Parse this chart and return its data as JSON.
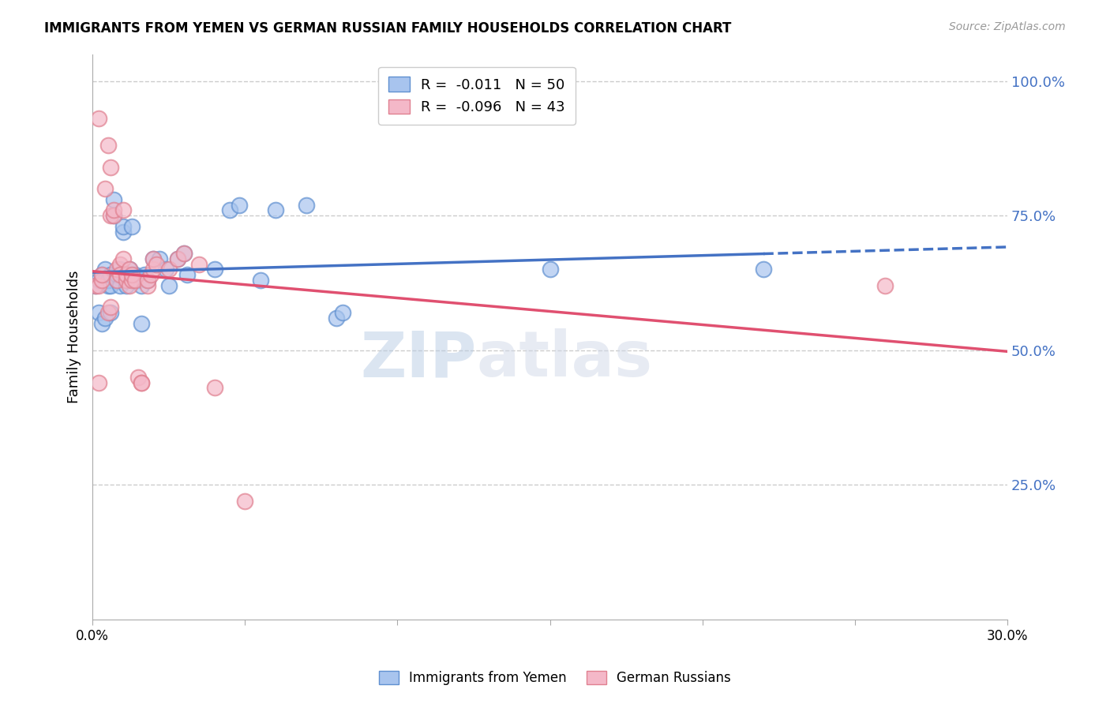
{
  "title": "IMMIGRANTS FROM YEMEN VS GERMAN RUSSIAN FAMILY HOUSEHOLDS CORRELATION CHART",
  "source": "Source: ZipAtlas.com",
  "ylabel": "Family Households",
  "right_yticks": [
    "100.0%",
    "75.0%",
    "50.0%",
    "25.0%"
  ],
  "right_ytick_vals": [
    1.0,
    0.75,
    0.5,
    0.25
  ],
  "xlim": [
    0.0,
    0.3
  ],
  "ylim": [
    0.0,
    1.05
  ],
  "legend_entry1": "R =  -0.011   N = 50",
  "legend_entry2": "R =  -0.096   N = 43",
  "line_color1": "#4472c4",
  "line_color2": "#e05070",
  "watermark_zip": "ZIP",
  "watermark_atlas": "atlas",
  "scatter_blue": [
    [
      0.001,
      0.62
    ],
    [
      0.002,
      0.63
    ],
    [
      0.003,
      0.63
    ],
    [
      0.003,
      0.64
    ],
    [
      0.004,
      0.65
    ],
    [
      0.004,
      0.63
    ],
    [
      0.005,
      0.62
    ],
    [
      0.005,
      0.63
    ],
    [
      0.006,
      0.62
    ],
    [
      0.006,
      0.64
    ],
    [
      0.007,
      0.75
    ],
    [
      0.007,
      0.78
    ],
    [
      0.008,
      0.63
    ],
    [
      0.008,
      0.64
    ],
    [
      0.009,
      0.65
    ],
    [
      0.009,
      0.62
    ],
    [
      0.01,
      0.72
    ],
    [
      0.01,
      0.73
    ],
    [
      0.011,
      0.62
    ],
    [
      0.011,
      0.63
    ],
    [
      0.012,
      0.64
    ],
    [
      0.012,
      0.65
    ],
    [
      0.013,
      0.73
    ],
    [
      0.014,
      0.64
    ],
    [
      0.015,
      0.63
    ],
    [
      0.016,
      0.62
    ],
    [
      0.017,
      0.64
    ],
    [
      0.018,
      0.63
    ],
    [
      0.02,
      0.67
    ],
    [
      0.022,
      0.67
    ],
    [
      0.024,
      0.65
    ],
    [
      0.025,
      0.62
    ],
    [
      0.028,
      0.67
    ],
    [
      0.03,
      0.68
    ],
    [
      0.031,
      0.64
    ],
    [
      0.04,
      0.65
    ],
    [
      0.045,
      0.76
    ],
    [
      0.048,
      0.77
    ],
    [
      0.055,
      0.63
    ],
    [
      0.06,
      0.76
    ],
    [
      0.07,
      0.77
    ],
    [
      0.08,
      0.56
    ],
    [
      0.082,
      0.57
    ],
    [
      0.15,
      0.65
    ],
    [
      0.002,
      0.57
    ],
    [
      0.003,
      0.55
    ],
    [
      0.004,
      0.56
    ],
    [
      0.006,
      0.57
    ],
    [
      0.22,
      0.65
    ],
    [
      0.016,
      0.55
    ]
  ],
  "scatter_pink": [
    [
      0.001,
      0.62
    ],
    [
      0.002,
      0.62
    ],
    [
      0.003,
      0.63
    ],
    [
      0.003,
      0.64
    ],
    [
      0.004,
      0.8
    ],
    [
      0.005,
      0.88
    ],
    [
      0.006,
      0.84
    ],
    [
      0.006,
      0.75
    ],
    [
      0.007,
      0.75
    ],
    [
      0.007,
      0.76
    ],
    [
      0.008,
      0.63
    ],
    [
      0.008,
      0.65
    ],
    [
      0.009,
      0.66
    ],
    [
      0.009,
      0.64
    ],
    [
      0.01,
      0.76
    ],
    [
      0.01,
      0.67
    ],
    [
      0.011,
      0.63
    ],
    [
      0.011,
      0.64
    ],
    [
      0.012,
      0.62
    ],
    [
      0.012,
      0.65
    ],
    [
      0.013,
      0.63
    ],
    [
      0.013,
      0.64
    ],
    [
      0.014,
      0.63
    ],
    [
      0.015,
      0.45
    ],
    [
      0.016,
      0.44
    ],
    [
      0.018,
      0.62
    ],
    [
      0.018,
      0.63
    ],
    [
      0.019,
      0.64
    ],
    [
      0.02,
      0.65
    ],
    [
      0.02,
      0.67
    ],
    [
      0.021,
      0.66
    ],
    [
      0.025,
      0.65
    ],
    [
      0.028,
      0.67
    ],
    [
      0.03,
      0.68
    ],
    [
      0.035,
      0.66
    ],
    [
      0.04,
      0.43
    ],
    [
      0.002,
      0.44
    ],
    [
      0.016,
      0.44
    ],
    [
      0.05,
      0.22
    ],
    [
      0.002,
      0.93
    ],
    [
      0.26,
      0.62
    ],
    [
      0.005,
      0.57
    ],
    [
      0.006,
      0.58
    ]
  ]
}
